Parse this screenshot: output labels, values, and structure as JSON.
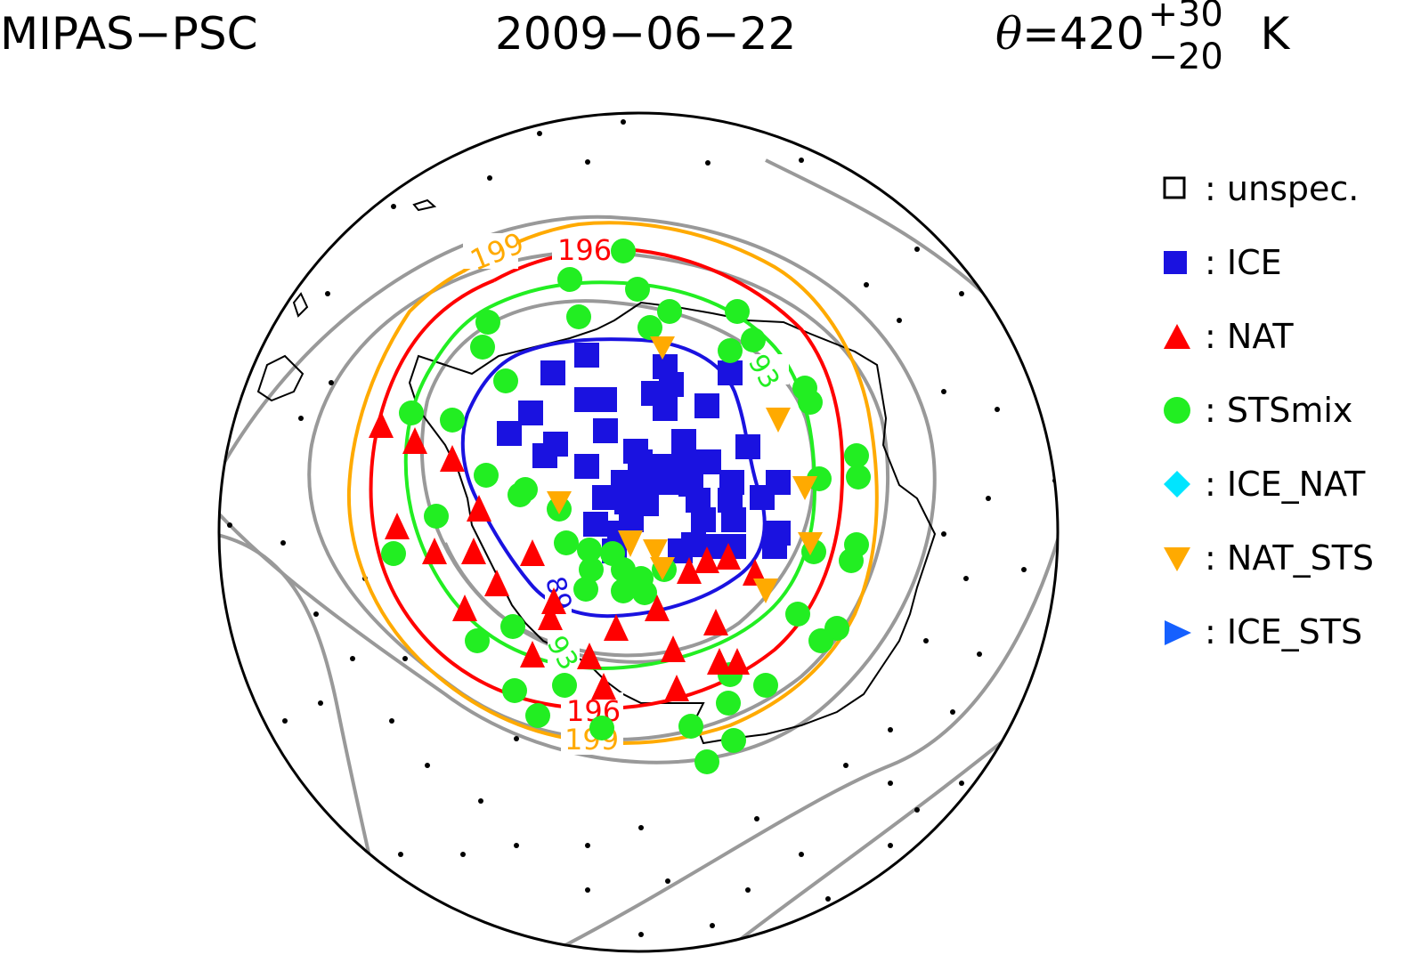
{
  "header": {
    "instrument": "MIPAS−PSC",
    "date": "2009−06−22",
    "theta_symbol": "θ",
    "theta_eq": "=420",
    "theta_plus": "+30",
    "theta_minus": "−20",
    "theta_unit": "K"
  },
  "contour_labels": {
    "c199_top": "199",
    "c196_top": "196",
    "c193_right": "93",
    "c189_bottom": "89",
    "c193_bottom": "93",
    "c196_bottom": "196",
    "c199_bottom": "199"
  },
  "legend": [
    {
      "symbol": "open-square",
      "label": "unspec.",
      "color": "#000000"
    },
    {
      "symbol": "filled-square",
      "label": "ICE",
      "color": "#1a12e0"
    },
    {
      "symbol": "triangle-up",
      "label": "NAT",
      "color": "#ff0000"
    },
    {
      "symbol": "circle",
      "label": "STSmix",
      "color": "#22ee22"
    },
    {
      "symbol": "diamond",
      "label": "ICE_NAT",
      "color": "#00e5ff"
    },
    {
      "symbol": "triangle-down",
      "label": "NAT_STS",
      "color": "#ffaa00"
    },
    {
      "symbol": "triangle-right",
      "label": "ICE_STS",
      "color": "#1560ff"
    }
  ],
  "legend_separator": ":",
  "contours": {
    "grey": "#999999",
    "c199": "#ffaa00",
    "c196": "#ff0000",
    "c193": "#22ee22",
    "c189": "#1a12e0"
  }
}
